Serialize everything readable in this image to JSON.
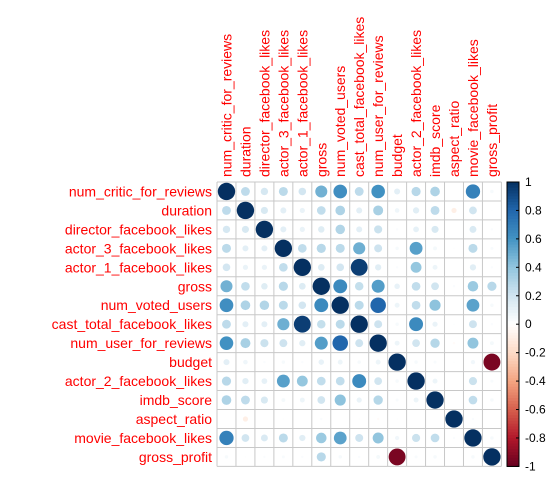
{
  "chart_data": {
    "type": "heatmap",
    "subtype": "correlation-circle-matrix",
    "variables": [
      "num_critic_for_reviews",
      "duration",
      "director_facebook_likes",
      "actor_3_facebook_likes",
      "actor_1_facebook_likes",
      "gross",
      "num_voted_users",
      "cast_total_facebook_likes",
      "num_user_for_reviews",
      "budget",
      "actor_2_facebook_likes",
      "imdb_score",
      "aspect_ratio",
      "movie_facebook_likes",
      "gross_profit"
    ],
    "matrix": [
      [
        1.0,
        0.26,
        0.18,
        0.27,
        0.19,
        0.48,
        0.62,
        0.26,
        0.61,
        0.12,
        0.28,
        0.31,
        0.0,
        0.68,
        0.04
      ],
      [
        0.26,
        1.0,
        0.17,
        0.12,
        0.09,
        0.25,
        0.31,
        0.12,
        0.33,
        0.07,
        0.13,
        0.26,
        -0.09,
        0.2,
        0.01
      ],
      [
        0.18,
        0.17,
        1.0,
        0.12,
        0.09,
        0.14,
        0.3,
        0.12,
        0.22,
        0.02,
        0.11,
        0.17,
        0.0,
        0.16,
        0.02
      ],
      [
        0.27,
        0.12,
        0.12,
        1.0,
        0.25,
        0.28,
        0.27,
        0.49,
        0.21,
        0.04,
        0.55,
        0.05,
        0.01,
        0.27,
        0.03
      ],
      [
        0.19,
        0.09,
        0.09,
        0.25,
        1.0,
        0.15,
        0.19,
        0.95,
        0.13,
        0.02,
        0.39,
        0.08,
        0.0,
        0.13,
        0.02
      ],
      [
        0.48,
        0.25,
        0.14,
        0.28,
        0.15,
        1.0,
        0.64,
        0.24,
        0.56,
        0.1,
        0.25,
        0.2,
        0.02,
        0.37,
        0.28
      ],
      [
        0.62,
        0.31,
        0.3,
        0.27,
        0.19,
        0.64,
        1.0,
        0.27,
        0.8,
        0.08,
        0.25,
        0.41,
        0.0,
        0.54,
        0.04
      ],
      [
        0.26,
        0.12,
        0.12,
        0.49,
        0.95,
        0.24,
        0.27,
        1.0,
        0.21,
        0.04,
        0.64,
        0.09,
        0.01,
        0.21,
        0.02
      ],
      [
        0.61,
        0.33,
        0.22,
        0.21,
        0.13,
        0.56,
        0.8,
        0.21,
        1.0,
        0.08,
        0.2,
        0.29,
        -0.02,
        0.4,
        0.05
      ],
      [
        0.12,
        0.07,
        0.02,
        0.04,
        0.02,
        0.1,
        0.08,
        0.04,
        0.08,
        1.0,
        0.04,
        0.03,
        0.01,
        0.06,
        -0.95
      ],
      [
        0.28,
        0.13,
        0.11,
        0.55,
        0.39,
        0.25,
        0.25,
        0.64,
        0.2,
        0.04,
        1.0,
        0.08,
        0.0,
        0.22,
        0.03
      ],
      [
        0.31,
        0.26,
        0.17,
        0.05,
        0.08,
        0.2,
        0.41,
        0.09,
        0.29,
        0.03,
        0.08,
        1.0,
        0.0,
        0.25,
        0.04
      ],
      [
        0.0,
        -0.09,
        0.0,
        0.01,
        0.0,
        0.02,
        0.0,
        0.01,
        -0.02,
        0.01,
        0.0,
        0.0,
        1.0,
        0.02,
        0.0
      ],
      [
        0.68,
        0.2,
        0.16,
        0.27,
        0.13,
        0.37,
        0.54,
        0.21,
        0.4,
        0.06,
        0.22,
        0.25,
        0.02,
        1.0,
        0.04
      ],
      [
        0.04,
        0.01,
        0.02,
        0.03,
        0.02,
        0.28,
        0.04,
        0.02,
        0.05,
        -0.95,
        0.03,
        0.04,
        0.0,
        0.04,
        1.0
      ]
    ],
    "color_scale": {
      "range": [
        -1,
        1
      ],
      "ticks": [
        "1",
        "0.8",
        "0.6",
        "0.4",
        "0.2",
        "0",
        "-0.2",
        "-0.4",
        "-0.6",
        "-0.8",
        "-1"
      ],
      "colors": [
        "#67001F",
        "#B2182B",
        "#D6604D",
        "#F4A582",
        "#FDDBC7",
        "#FFFFFF",
        "#D1E5F0",
        "#92C5DE",
        "#4393C3",
        "#2166AC",
        "#053061"
      ]
    },
    "grid": true,
    "legend": "right",
    "title": "",
    "xlabel": "",
    "ylabel": ""
  }
}
